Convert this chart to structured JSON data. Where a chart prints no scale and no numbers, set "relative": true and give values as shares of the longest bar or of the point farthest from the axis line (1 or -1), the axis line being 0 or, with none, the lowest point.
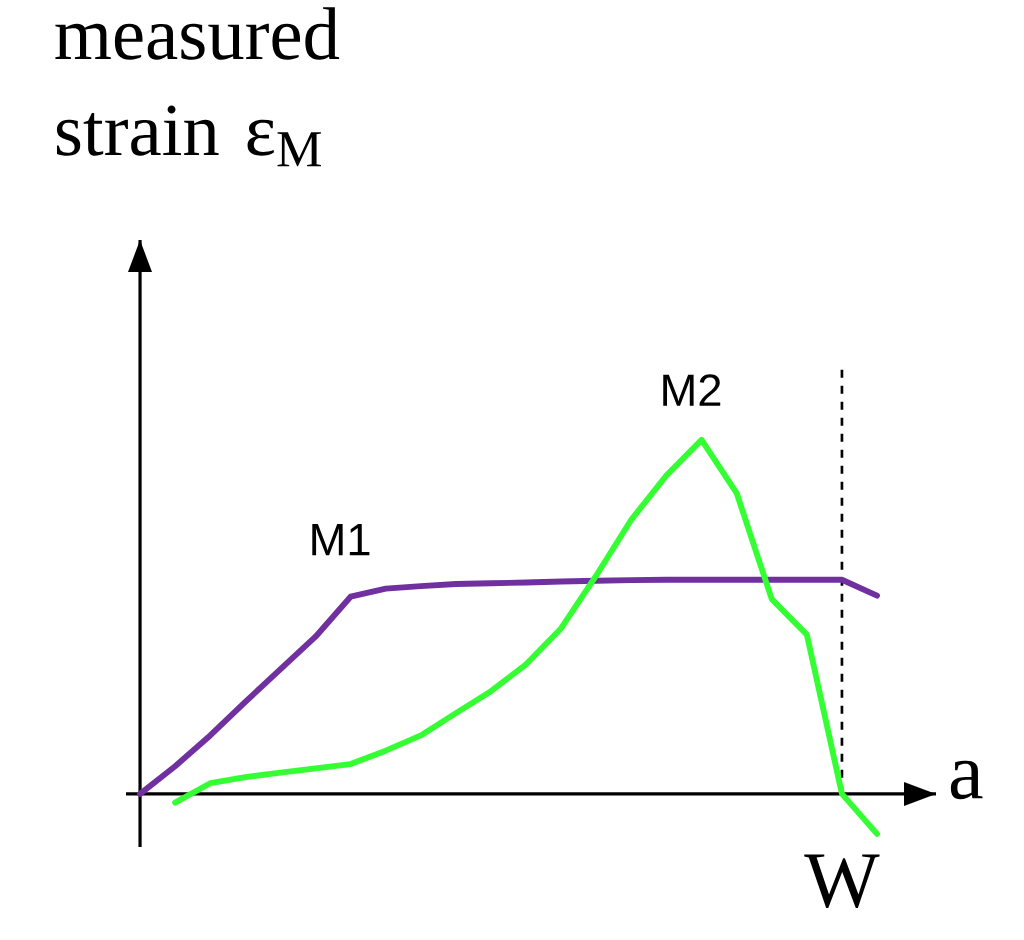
{
  "chart_data": {
    "type": "line",
    "relative": true,
    "ylabel": "measured strain ε$_{M}$",
    "xlabel": "a",
    "marker": "none",
    "line_style": "solid",
    "categories": [
      null,
      null,
      null,
      null,
      null,
      null,
      null,
      null,
      null,
      null,
      null,
      null,
      null,
      null,
      null,
      null,
      null,
      null,
      null,
      null,
      null,
      null,
      null
    ],
    "annotations": [
      "W"
    ],
    "series": [
      {
        "name": "M1",
        "color": "#7030a0",
        "values": [
          0,
          0.078,
          0.165,
          0.26,
          0.352,
          0.444,
          0.557,
          0.58,
          0.587,
          0.593,
          0.595,
          0.597,
          0.6,
          0.602,
          0.604,
          0.605,
          0.605,
          0.605,
          0.605,
          0.605,
          0.605,
          0.56,
          null
        ]
      },
      {
        "name": "M2",
        "color": "#33ff33",
        "values": [
          null,
          -0.025,
          0.03,
          0.047,
          0.06,
          0.072,
          0.084,
          0.122,
          0.165,
          0.228,
          0.29,
          0.366,
          0.468,
          0.617,
          0.775,
          0.9,
          1.0,
          0.85,
          0.55,
          0.45,
          0,
          -0.113,
          null
        ]
      }
    ]
  }
}
